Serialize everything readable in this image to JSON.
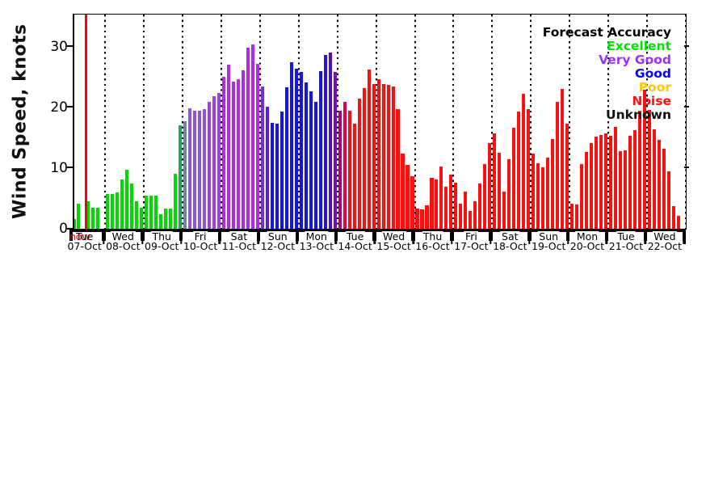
{
  "y_axis": {
    "title": "Wind Speed, knots",
    "ticks": [
      "0",
      "10",
      "20",
      "30"
    ]
  },
  "x_axis": {
    "now_label": "now"
  },
  "legend": {
    "title": "Forecast Accuracy",
    "items": [
      {
        "label": "Excellent",
        "color": "#00e400"
      },
      {
        "label": "Very Good",
        "color": "#9933ff"
      },
      {
        "label": "Good",
        "color": "#0505ff"
      },
      {
        "label": "Poor",
        "color": "#ffc800"
      },
      {
        "label": "Noise",
        "color": "#ff0f0f"
      },
      {
        "label": "Unknown",
        "color": "#111111"
      }
    ]
  },
  "palette": {
    "green": "#00d900",
    "teal": "#2f9e63",
    "slate": "#6e84a2",
    "purpleA": "#8a55d8",
    "purpleB": "#9d40e4",
    "purpleC": "#ac2ce9",
    "violetA": "#6a30e2",
    "violetB": "#4a22ea",
    "blue": "#1512f2",
    "indigoA": "#2c10d4",
    "indigoB": "#4d0fbe",
    "darkviolet": "#7a0dad",
    "magenta": "#a3077d",
    "crimson": "#da0551",
    "red": "#f31111"
  },
  "chart_data": {
    "type": "bar",
    "title": "",
    "xlabel": "",
    "ylabel": "Wind Speed, knots",
    "ylim": [
      0,
      35.4
    ],
    "yticks": [
      0,
      10,
      20,
      30
    ],
    "interval_hours": 3,
    "grid": "vertical dotted lines at day boundaries",
    "legend_position": "top-right inside plot",
    "series_meaning": "bar color encodes forecast accuracy category",
    "now_marker": {
      "day_index": 0,
      "slot": 3.5,
      "color": "#ff0000"
    },
    "days": [
      {
        "day": "Tue",
        "date": "07-Oct",
        "bars": [
          null,
          [
            1.8,
            "green"
          ],
          [
            4.2,
            "green"
          ],
          null,
          [
            4.7,
            "green"
          ],
          [
            3.6,
            "green"
          ],
          [
            3.6,
            "green"
          ],
          null
        ]
      },
      {
        "day": "Wed",
        "date": "08-Oct",
        "bars": [
          [
            5.9,
            "green"
          ],
          [
            5.8,
            "green"
          ],
          [
            6.1,
            "green"
          ],
          [
            8.2,
            "green"
          ],
          [
            9.9,
            "green"
          ],
          [
            7.6,
            "green"
          ],
          [
            4.7,
            "green"
          ],
          [
            3.6,
            "green"
          ]
        ]
      },
      {
        "day": "Thu",
        "date": "09-Oct",
        "bars": [
          [
            5.6,
            "green"
          ],
          [
            5.6,
            "green"
          ],
          [
            5.6,
            "green"
          ],
          [
            2.6,
            "green"
          ],
          [
            3.5,
            "green"
          ],
          [
            3.5,
            "green"
          ],
          [
            9.2,
            "green"
          ],
          [
            17.2,
            "teal"
          ]
        ]
      },
      {
        "day": "Fri",
        "date": "10-Oct",
        "bars": [
          [
            17.9,
            "slate"
          ],
          [
            20.0,
            "purpleA"
          ],
          [
            19.6,
            "purpleA"
          ],
          [
            19.6,
            "purpleA"
          ],
          [
            19.8,
            "purpleA"
          ],
          [
            21.1,
            "purpleB"
          ],
          [
            22.0,
            "purpleB"
          ],
          [
            22.5,
            "purpleB"
          ]
        ]
      },
      {
        "day": "Sat",
        "date": "11-Oct",
        "bars": [
          [
            25.1,
            "purpleC"
          ],
          [
            27.1,
            "purpleC"
          ],
          [
            24.4,
            "purpleC"
          ],
          [
            24.8,
            "purpleC"
          ],
          [
            26.2,
            "purpleC"
          ],
          [
            30.0,
            "purpleC"
          ],
          [
            30.5,
            "purpleC"
          ],
          [
            27.3,
            "purpleC"
          ]
        ]
      },
      {
        "day": "Sun",
        "date": "12-Oct",
        "bars": [
          [
            23.6,
            "violetA"
          ],
          [
            20.3,
            "violetB"
          ],
          [
            17.6,
            "blue"
          ],
          [
            17.4,
            "blue"
          ],
          [
            19.4,
            "blue"
          ],
          [
            23.4,
            "blue"
          ],
          [
            27.5,
            "blue"
          ],
          [
            26.5,
            "blue"
          ]
        ]
      },
      {
        "day": "Mon",
        "date": "13-Oct",
        "bars": [
          [
            26.0,
            "blue"
          ],
          [
            24.2,
            "blue"
          ],
          [
            22.7,
            "blue"
          ],
          [
            21.1,
            "blue"
          ],
          [
            26.1,
            "blue"
          ],
          [
            28.8,
            "indigoA"
          ],
          [
            29.2,
            "indigoB"
          ],
          [
            26.0,
            "darkviolet"
          ]
        ]
      },
      {
        "day": "Tue",
        "date": "14-Oct",
        "bars": [
          [
            19.6,
            "magenta"
          ],
          [
            21.0,
            "crimson"
          ],
          [
            19.6,
            "red"
          ],
          [
            17.4,
            "red"
          ],
          [
            21.6,
            "red"
          ],
          [
            23.3,
            "red"
          ],
          [
            26.4,
            "red"
          ],
          [
            24.0,
            "red"
          ]
        ]
      },
      {
        "day": "Wed",
        "date": "15-Oct",
        "bars": [
          [
            24.8,
            "red"
          ],
          [
            23.9,
            "red"
          ],
          [
            23.8,
            "red"
          ],
          [
            23.6,
            "red"
          ],
          [
            19.8,
            "red"
          ],
          [
            12.5,
            "red"
          ],
          [
            10.6,
            "red"
          ],
          [
            8.8,
            "red"
          ]
        ]
      },
      {
        "day": "Thu",
        "date": "16-Oct",
        "bars": [
          [
            3.5,
            "red"
          ],
          [
            3.3,
            "red"
          ],
          [
            4.0,
            "red"
          ],
          [
            8.5,
            "red"
          ],
          [
            8.3,
            "red"
          ],
          [
            10.4,
            "red"
          ],
          [
            7.0,
            "red"
          ],
          [
            9.1,
            "red"
          ]
        ]
      },
      {
        "day": "Fri",
        "date": "17-Oct",
        "bars": [
          [
            7.7,
            "red"
          ],
          [
            4.2,
            "red"
          ],
          [
            6.2,
            "red"
          ],
          [
            3.1,
            "red"
          ],
          [
            4.6,
            "red"
          ],
          [
            7.6,
            "red"
          ],
          [
            10.8,
            "red"
          ],
          [
            14.2,
            "red"
          ]
        ]
      },
      {
        "day": "Sat",
        "date": "18-Oct",
        "bars": [
          [
            15.9,
            "red"
          ],
          [
            12.7,
            "red"
          ],
          [
            6.2,
            "red"
          ],
          [
            11.6,
            "red"
          ],
          [
            16.8,
            "red"
          ],
          [
            19.4,
            "red"
          ],
          [
            22.4,
            "red"
          ],
          [
            19.8,
            "red"
          ]
        ]
      },
      {
        "day": "Sun",
        "date": "19-Oct",
        "bars": [
          [
            12.5,
            "red"
          ],
          [
            10.9,
            "red"
          ],
          [
            10.2,
            "red"
          ],
          [
            11.8,
            "red"
          ],
          [
            14.9,
            "red"
          ],
          [
            21.1,
            "red"
          ],
          [
            23.2,
            "red"
          ],
          [
            17.4,
            "red"
          ]
        ]
      },
      {
        "day": "Mon",
        "date": "20-Oct",
        "bars": [
          [
            4.3,
            "red"
          ],
          [
            4.1,
            "red"
          ],
          [
            10.8,
            "red"
          ],
          [
            12.8,
            "red"
          ],
          [
            14.2,
            "red"
          ],
          [
            15.3,
            "red"
          ],
          [
            15.6,
            "red"
          ],
          [
            15.8,
            "red"
          ]
        ]
      },
      {
        "day": "Tue",
        "date": "21-Oct",
        "bars": [
          [
            15.5,
            "red"
          ],
          [
            16.9,
            "red"
          ],
          [
            12.9,
            "red"
          ],
          [
            13.1,
            "red"
          ],
          [
            15.5,
            "red"
          ],
          [
            16.4,
            "red"
          ],
          [
            19.6,
            "red"
          ],
          [
            23.0,
            "red"
          ]
        ]
      },
      {
        "day": "Wed",
        "date": "22-Oct",
        "bars": [
          [
            19.7,
            "red"
          ],
          [
            16.5,
            "red"
          ],
          [
            14.8,
            "red"
          ],
          [
            13.3,
            "red"
          ],
          [
            9.6,
            "red"
          ],
          [
            3.8,
            "red"
          ],
          [
            2.3,
            "red"
          ],
          null
        ]
      }
    ]
  }
}
